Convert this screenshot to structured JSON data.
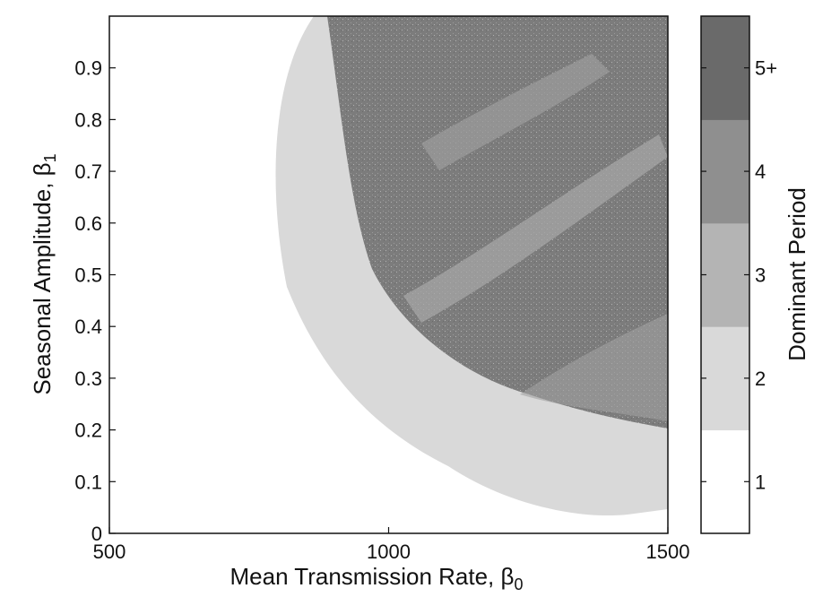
{
  "chart_data": {
    "type": "heatmap",
    "xlabel": "Mean Transmission Rate, β",
    "xlabel_sub": "0",
    "ylabel": "Seasonal Amplitude, β",
    "ylabel_sub": "1",
    "xlim": [
      500,
      1500
    ],
    "ylim": [
      0,
      1
    ],
    "xticks": [
      500,
      1000,
      1500
    ],
    "yticks": [
      0,
      0.1,
      0.2,
      0.3,
      0.4,
      0.5,
      0.6,
      0.7,
      0.8,
      0.9
    ],
    "ytick_labels": [
      "0",
      "0.1",
      "0.2",
      "0.3",
      "0.4",
      "0.5",
      "0.6",
      "0.7",
      "0.8",
      "0.9"
    ],
    "colorbar": {
      "label": "Dominant Period",
      "levels": [
        {
          "label": "1",
          "color": "#ffffff"
        },
        {
          "label": "2",
          "color": "#d9d9d9"
        },
        {
          "label": "3",
          "color": "#b4b4b4"
        },
        {
          "label": "4",
          "color": "#8f8f8f"
        },
        {
          "label": "5+",
          "color": "#6a6a6a"
        }
      ]
    },
    "regions": [
      {
        "period": "1",
        "description": "white region at low β0"
      },
      {
        "period": "2",
        "description": "light grey annulus band"
      },
      {
        "period": "4",
        "description": "speckled dark band at high β0, high β1"
      },
      {
        "period": "3",
        "description": "mid grey streaks in upper right"
      }
    ],
    "grid": false
  }
}
